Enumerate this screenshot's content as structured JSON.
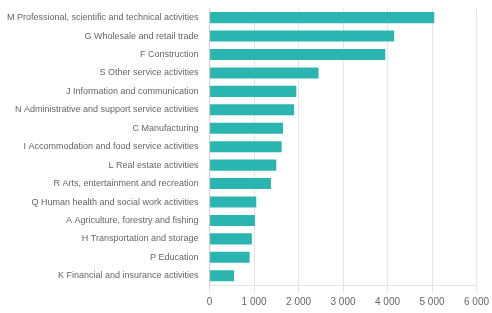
{
  "chart_data": {
    "type": "bar",
    "orientation": "horizontal",
    "categories": [
      "M Professional, scientific and technical activities",
      "G Wholesale and retail trade",
      "F Construction",
      "S Other service activities",
      "J Information and communication",
      "N Administrative and support service activities",
      "C Manufacturing",
      "I Accommodation and food service activities",
      "L Real estate activities",
      "R Arts, entertainment and recreation",
      "Q Human health and social work activities",
      "A Agriculture, forestry and fishing",
      "H Transportation and storage",
      "P Education",
      "K Financial and insurance activities"
    ],
    "values": [
      5050,
      4150,
      3950,
      2450,
      1950,
      1900,
      1650,
      1620,
      1500,
      1380,
      1050,
      1020,
      950,
      900,
      550
    ],
    "color": "#2ab5b0",
    "xlim": [
      0,
      6000
    ],
    "xticks": [
      0,
      {
        "value": 1000,
        "label": "1 000"
      },
      {
        "value": 2000,
        "label": "2 000"
      },
      {
        "value": 3000,
        "label": "3 000"
      },
      {
        "value": 4000,
        "label": "4 000"
      },
      {
        "value": 5000,
        "label": "5 000"
      },
      {
        "value": 6000,
        "label": "6 000"
      }
    ],
    "grid": true
  }
}
